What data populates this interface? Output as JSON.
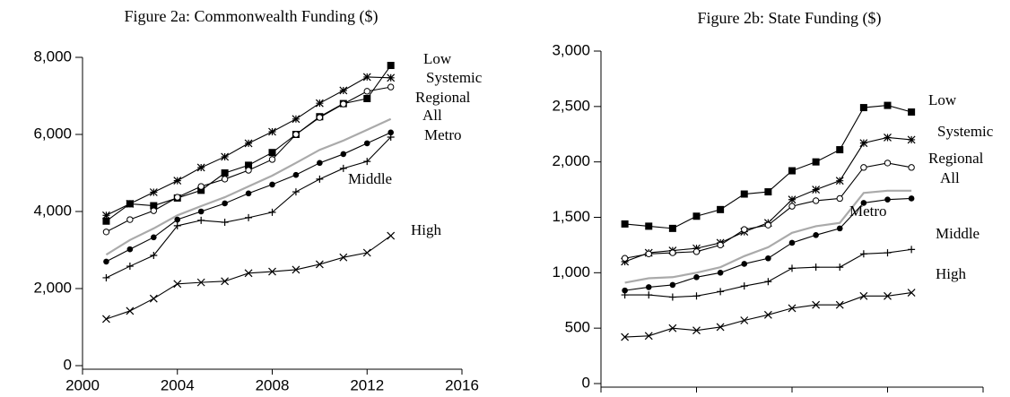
{
  "chart_data": [
    {
      "type": "line",
      "title": "Figure 2a: Commonwealth Funding ($)",
      "x": [
        2001,
        2002,
        2003,
        2004,
        2005,
        2006,
        2007,
        2008,
        2009,
        2010,
        2011,
        2012,
        2013
      ],
      "xlim": [
        2000,
        2016
      ],
      "xticks": [
        2000,
        2004,
        2008,
        2012,
        2016
      ],
      "ylim": [
        0,
        8000
      ],
      "yticks": [
        0,
        {
          "value": 2000,
          "label": "2,000"
        },
        {
          "value": 4000,
          "label": "4,000"
        },
        {
          "value": 6000,
          "label": "6,000"
        },
        {
          "value": 8000,
          "label": "8,000"
        }
      ],
      "series": [
        {
          "name": "Low",
          "color": "#000000",
          "marker": "square",
          "values": [
            3750,
            4200,
            4150,
            4350,
            4550,
            5000,
            5200,
            5530,
            6000,
            6460,
            6800,
            6930,
            7790
          ]
        },
        {
          "name": "Systemic",
          "color": "#000000",
          "marker": "star",
          "values": [
            3900,
            4200,
            4500,
            4800,
            5140,
            5420,
            5770,
            6070,
            6400,
            6810,
            7140,
            7490,
            7470
          ]
        },
        {
          "name": "Regional",
          "color": "#000000",
          "marker": "open-circle",
          "values": [
            3470,
            3790,
            4020,
            4370,
            4650,
            4840,
            5070,
            5350,
            6000,
            6440,
            6790,
            7120,
            7230
          ]
        },
        {
          "name": "All",
          "color": "#aaaaaa",
          "marker": "none",
          "values": [
            2880,
            3260,
            3560,
            3900,
            4140,
            4370,
            4650,
            4930,
            5260,
            5600,
            5840,
            6120,
            6400
          ]
        },
        {
          "name": "Metro",
          "color": "#000000",
          "marker": "dot",
          "values": [
            2700,
            3020,
            3330,
            3790,
            4000,
            4210,
            4470,
            4700,
            4950,
            5260,
            5490,
            5770,
            6050
          ]
        },
        {
          "name": "Middle",
          "color": "#000000",
          "marker": "plus",
          "values": [
            2280,
            2580,
            2860,
            3630,
            3770,
            3720,
            3840,
            3980,
            4510,
            4840,
            5120,
            5300,
            5930
          ]
        },
        {
          "name": "High",
          "color": "#000000",
          "marker": "cross",
          "values": [
            1210,
            1420,
            1740,
            2120,
            2160,
            2190,
            2400,
            2440,
            2490,
            2630,
            2810,
            2930,
            3370
          ]
        }
      ]
    },
    {
      "type": "line",
      "title": "Figure 2b: State Funding ($)",
      "x": [
        2001,
        2002,
        2003,
        2004,
        2005,
        2006,
        2007,
        2008,
        2009,
        2010,
        2011,
        2012,
        2013
      ],
      "xlim": [
        2000,
        2016
      ],
      "xticks": [
        2000,
        2004,
        2008,
        2012,
        2016
      ],
      "ylim": [
        0,
        3000
      ],
      "yticks": [
        0,
        500,
        {
          "value": 1000,
          "label": "1,000"
        },
        {
          "value": 1500,
          "label": "1,500"
        },
        {
          "value": 2000,
          "label": "2,000"
        },
        {
          "value": 2500,
          "label": "2,500"
        },
        {
          "value": 3000,
          "label": "3,000"
        }
      ],
      "series": [
        {
          "name": "Low",
          "color": "#000000",
          "marker": "square",
          "values": [
            1440,
            1420,
            1400,
            1510,
            1570,
            1710,
            1730,
            1920,
            2000,
            2110,
            2490,
            2510,
            2450
          ]
        },
        {
          "name": "Systemic",
          "color": "#000000",
          "marker": "star",
          "values": [
            1100,
            1180,
            1200,
            1220,
            1270,
            1370,
            1450,
            1660,
            1750,
            1830,
            2170,
            2220,
            2200
          ]
        },
        {
          "name": "Regional",
          "color": "#000000",
          "marker": "open-circle",
          "values": [
            1130,
            1170,
            1180,
            1190,
            1250,
            1390,
            1430,
            1600,
            1650,
            1670,
            1950,
            1990,
            1950
          ]
        },
        {
          "name": "All",
          "color": "#aaaaaa",
          "marker": "none",
          "values": [
            910,
            950,
            960,
            1000,
            1050,
            1150,
            1230,
            1360,
            1420,
            1450,
            1720,
            1740,
            1740
          ]
        },
        {
          "name": "Metro",
          "color": "#000000",
          "marker": "dot",
          "values": [
            840,
            870,
            890,
            960,
            1000,
            1080,
            1130,
            1270,
            1340,
            1400,
            1630,
            1660,
            1670
          ]
        },
        {
          "name": "Middle",
          "color": "#000000",
          "marker": "plus",
          "values": [
            800,
            800,
            780,
            790,
            830,
            880,
            920,
            1040,
            1050,
            1050,
            1170,
            1180,
            1210
          ]
        },
        {
          "name": "High",
          "color": "#000000",
          "marker": "cross",
          "values": [
            420,
            430,
            500,
            480,
            510,
            570,
            620,
            680,
            710,
            710,
            790,
            790,
            820
          ]
        }
      ]
    }
  ]
}
